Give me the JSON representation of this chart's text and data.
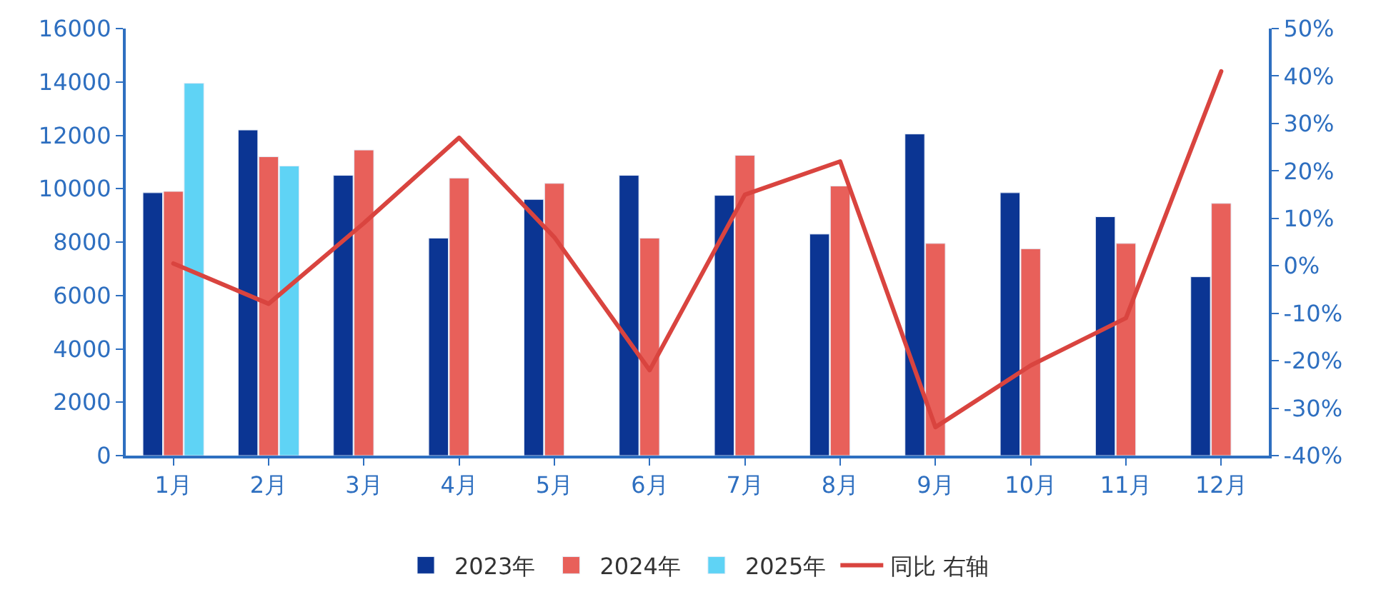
{
  "chart_data": {
    "type": "bar",
    "categories": [
      "1月",
      "2月",
      "3月",
      "4月",
      "5月",
      "6月",
      "7月",
      "8月",
      "9月",
      "10月",
      "11月",
      "12月"
    ],
    "series": [
      {
        "name": "2023年",
        "color": "#0b3593",
        "values": [
          9850,
          12200,
          10500,
          8150,
          9600,
          10500,
          9750,
          8300,
          12050,
          9850,
          8950,
          6700
        ]
      },
      {
        "name": "2024年",
        "color": "#e8605a",
        "values": [
          9900,
          11200,
          11450,
          10400,
          10200,
          8150,
          11250,
          10100,
          7950,
          7750,
          7950,
          9450
        ]
      },
      {
        "name": "2025年",
        "color": "#5fd3f5",
        "values": [
          13950,
          10850,
          null,
          null,
          null,
          null,
          null,
          null,
          null,
          null,
          null,
          null
        ]
      },
      {
        "name": "同比 右轴",
        "type": "line",
        "axis": "y2",
        "color": "#d9443f",
        "values": [
          0.5,
          -8,
          9,
          27,
          6,
          -22,
          15,
          22,
          -34,
          -21,
          -11,
          41
        ]
      }
    ],
    "ylim": [
      0,
      16000
    ],
    "yticks": [
      0,
      2000,
      4000,
      6000,
      8000,
      10000,
      12000,
      14000,
      16000
    ],
    "y2lim": [
      -40,
      50
    ],
    "y2ticks": [
      {
        "value": -40,
        "label": "-40%"
      },
      {
        "value": -30,
        "label": "-30%"
      },
      {
        "value": -20,
        "label": "-20%"
      },
      {
        "value": -10,
        "label": "-10%"
      },
      {
        "value": 0,
        "label": "0%"
      },
      {
        "value": 10,
        "label": "10%"
      },
      {
        "value": 20,
        "label": "20%"
      },
      {
        "value": 30,
        "label": "30%"
      },
      {
        "value": 40,
        "label": "40%"
      },
      {
        "value": 50,
        "label": "50%"
      }
    ],
    "legend": "bottom",
    "marker": "none",
    "line_style": "solid"
  }
}
